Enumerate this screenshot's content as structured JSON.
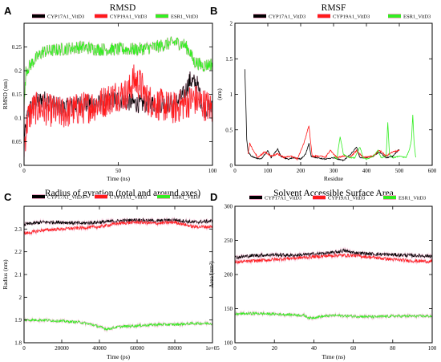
{
  "colors": {
    "CYP17A1": "#000000",
    "CYP19A1": "#ff1a1a",
    "ESR1": "#33ee22",
    "shadow": "#f2a8c8"
  },
  "chart_data": [
    {
      "panel": "A",
      "type": "line",
      "title": "RMSD",
      "xlabel": "Time (ns)",
      "ylabel": "RMSD (nm)",
      "xlim": [
        0,
        100
      ],
      "ylim": [
        0,
        0.3
      ],
      "xticks": [
        0,
        50,
        100
      ],
      "yticks": [
        0,
        0.05,
        0.1,
        0.15,
        0.2,
        0.25
      ],
      "yticklabels": [
        "0",
        "0.05",
        "0.1",
        "0.15",
        "0.2",
        "0.25"
      ],
      "legend_position": "top",
      "series": [
        {
          "name": "CYP17A1_VitD3",
          "color_key": "CYP17A1",
          "noise": 0.02,
          "values": [
            [
              0,
              0.05
            ],
            [
              2,
              0.11
            ],
            [
              5,
              0.13
            ],
            [
              10,
              0.14
            ],
            [
              15,
              0.13
            ],
            [
              20,
              0.12
            ],
            [
              30,
              0.13
            ],
            [
              40,
              0.13
            ],
            [
              50,
              0.14
            ],
            [
              60,
              0.13
            ],
            [
              70,
              0.13
            ],
            [
              80,
              0.13
            ],
            [
              85,
              0.15
            ],
            [
              88,
              0.18
            ],
            [
              92,
              0.17
            ],
            [
              95,
              0.12
            ],
            [
              100,
              0.12
            ]
          ]
        },
        {
          "name": "CYP19A1_VitD3",
          "color_key": "CYP19A1",
          "noise": 0.035,
          "values": [
            [
              0,
              0.04
            ],
            [
              2,
              0.1
            ],
            [
              5,
              0.12
            ],
            [
              10,
              0.12
            ],
            [
              20,
              0.11
            ],
            [
              30,
              0.12
            ],
            [
              40,
              0.13
            ],
            [
              45,
              0.14
            ],
            [
              50,
              0.15
            ],
            [
              55,
              0.15
            ],
            [
              58,
              0.18
            ],
            [
              62,
              0.17
            ],
            [
              65,
              0.14
            ],
            [
              70,
              0.13
            ],
            [
              80,
              0.12
            ],
            [
              90,
              0.14
            ],
            [
              100,
              0.12
            ]
          ]
        },
        {
          "name": "ESR1_VitD3",
          "color_key": "ESR1",
          "noise": 0.014,
          "values": [
            [
              0,
              0.12
            ],
            [
              1,
              0.2
            ],
            [
              3,
              0.21
            ],
            [
              5,
              0.22
            ],
            [
              10,
              0.24
            ],
            [
              20,
              0.245
            ],
            [
              30,
              0.25
            ],
            [
              40,
              0.245
            ],
            [
              50,
              0.245
            ],
            [
              60,
              0.245
            ],
            [
              70,
              0.25
            ],
            [
              80,
              0.26
            ],
            [
              85,
              0.255
            ],
            [
              88,
              0.24
            ],
            [
              90,
              0.22
            ],
            [
              95,
              0.21
            ],
            [
              100,
              0.215
            ]
          ]
        }
      ]
    },
    {
      "panel": "B",
      "type": "line",
      "title": "RMSF",
      "xlabel": "Residue",
      "ylabel": "(nm)",
      "xlim": [
        0,
        600
      ],
      "ylim": [
        0,
        2
      ],
      "xticks": [
        0,
        100,
        200,
        300,
        400,
        500,
        600
      ],
      "yticks": [
        0,
        0.5,
        1,
        1.5,
        2
      ],
      "yticklabels": [
        "0",
        "0.5",
        "1",
        "1.5",
        "2"
      ],
      "legend_position": "top",
      "series": [
        {
          "name": "CYP17A1_VitD3",
          "color_key": "CYP17A1",
          "noise": 0.015,
          "values": [
            [
              30,
              1.35
            ],
            [
              33,
              0.9
            ],
            [
              36,
              0.35
            ],
            [
              40,
              0.18
            ],
            [
              50,
              0.12
            ],
            [
              60,
              0.1
            ],
            [
              80,
              0.08
            ],
            [
              100,
              0.2
            ],
            [
              110,
              0.1
            ],
            [
              130,
              0.22
            ],
            [
              140,
              0.12
            ],
            [
              160,
              0.08
            ],
            [
              180,
              0.1
            ],
            [
              200,
              0.08
            ],
            [
              215,
              0.15
            ],
            [
              225,
              0.3
            ],
            [
              232,
              0.12
            ],
            [
              250,
              0.1
            ],
            [
              270,
              0.08
            ],
            [
              300,
              0.1
            ],
            [
              330,
              0.06
            ],
            [
              350,
              0.14
            ],
            [
              370,
              0.25
            ],
            [
              380,
              0.1
            ],
            [
              400,
              0.1
            ],
            [
              420,
              0.12
            ],
            [
              440,
              0.18
            ],
            [
              460,
              0.1
            ],
            [
              480,
              0.12
            ],
            [
              500,
              0.22
            ]
          ]
        },
        {
          "name": "CYP19A1_VitD3",
          "color_key": "CYP19A1",
          "noise": 0.02,
          "values": [
            [
              40,
              0.15
            ],
            [
              45,
              0.3
            ],
            [
              55,
              0.2
            ],
            [
              70,
              0.1
            ],
            [
              90,
              0.18
            ],
            [
              110,
              0.12
            ],
            [
              130,
              0.15
            ],
            [
              150,
              0.1
            ],
            [
              170,
              0.12
            ],
            [
              190,
              0.08
            ],
            [
              210,
              0.3
            ],
            [
              225,
              0.55
            ],
            [
              235,
              0.12
            ],
            [
              260,
              0.12
            ],
            [
              275,
              0.1
            ],
            [
              290,
              0.2
            ],
            [
              310,
              0.1
            ],
            [
              330,
              0.12
            ],
            [
              350,
              0.1
            ],
            [
              370,
              0.2
            ],
            [
              390,
              0.1
            ],
            [
              420,
              0.12
            ],
            [
              440,
              0.2
            ],
            [
              460,
              0.12
            ],
            [
              480,
              0.18
            ],
            [
              500,
              0.2
            ]
          ]
        },
        {
          "name": "ESR1_VitD3",
          "color_key": "ESR1",
          "noise": 0.015,
          "values": [
            [
              300,
              0.12
            ],
            [
              310,
              0.08
            ],
            [
              320,
              0.4
            ],
            [
              330,
              0.15
            ],
            [
              340,
              0.12
            ],
            [
              350,
              0.1
            ],
            [
              365,
              0.1
            ],
            [
              380,
              0.25
            ],
            [
              390,
              0.1
            ],
            [
              400,
              0.08
            ],
            [
              420,
              0.12
            ],
            [
              435,
              0.2
            ],
            [
              445,
              0.1
            ],
            [
              460,
              0.12
            ],
            [
              465,
              0.6
            ],
            [
              470,
              0.15
            ],
            [
              480,
              0.1
            ],
            [
              500,
              0.12
            ],
            [
              520,
              0.1
            ],
            [
              530,
              0.2
            ],
            [
              537,
              0.35
            ],
            [
              541,
              0.7
            ],
            [
              545,
              0.3
            ],
            [
              550,
              0.1
            ]
          ]
        }
      ]
    },
    {
      "panel": "C",
      "type": "line",
      "title": "Radius of gyration (total and around axes)",
      "xlabel": "Time (ps)",
      "ylabel": "Radius (nm)",
      "xlim": [
        0,
        100000
      ],
      "ylim": [
        1.8,
        2.4
      ],
      "xticks": [
        0,
        20000,
        40000,
        60000,
        80000,
        100000
      ],
      "xticklabels": [
        "0",
        "20000",
        "40000",
        "60000",
        "80000",
        "1e+05"
      ],
      "yticks": [
        1.8,
        1.9,
        2.0,
        2.1,
        2.2,
        2.3
      ],
      "yticklabels": [
        "1.8",
        "1.9",
        "2",
        "2.1",
        "2.2",
        "2.3"
      ],
      "legend_position": "top",
      "series": [
        {
          "name": "CYP17A1_VitD3",
          "color_key": "CYP17A1",
          "noise": 0.008,
          "values": [
            [
              0,
              2.32
            ],
            [
              10000,
              2.33
            ],
            [
              20000,
              2.33
            ],
            [
              30000,
              2.325
            ],
            [
              40000,
              2.33
            ],
            [
              50000,
              2.335
            ],
            [
              60000,
              2.34
            ],
            [
              70000,
              2.335
            ],
            [
              80000,
              2.34
            ],
            [
              90000,
              2.33
            ],
            [
              100000,
              2.335
            ]
          ]
        },
        {
          "name": "CYP19A1_VitD3",
          "color_key": "CYP19A1",
          "noise": 0.007,
          "values": [
            [
              0,
              2.28
            ],
            [
              10000,
              2.295
            ],
            [
              20000,
              2.3
            ],
            [
              30000,
              2.305
            ],
            [
              40000,
              2.31
            ],
            [
              50000,
              2.325
            ],
            [
              60000,
              2.33
            ],
            [
              70000,
              2.325
            ],
            [
              80000,
              2.33
            ],
            [
              90000,
              2.31
            ],
            [
              100000,
              2.31
            ]
          ]
        },
        {
          "name": "ESR1_VitD3",
          "color_key": "ESR1",
          "noise": 0.006,
          "values": [
            [
              0,
              1.9
            ],
            [
              10000,
              1.9
            ],
            [
              20000,
              1.895
            ],
            [
              30000,
              1.89
            ],
            [
              36000,
              1.88
            ],
            [
              40000,
              1.87
            ],
            [
              44000,
              1.86
            ],
            [
              50000,
              1.87
            ],
            [
              60000,
              1.875
            ],
            [
              70000,
              1.88
            ],
            [
              80000,
              1.88
            ],
            [
              90000,
              1.885
            ],
            [
              100000,
              1.885
            ]
          ]
        }
      ]
    },
    {
      "panel": "D",
      "type": "line",
      "title": "Solvent Accessible Surface Area",
      "xlabel": "Time (ns)",
      "ylabel": "Area (nm²)",
      "xlim": [
        0,
        100
      ],
      "ylim": [
        100,
        300
      ],
      "xticks": [
        0,
        20,
        40,
        60,
        80,
        100
      ],
      "yticks": [
        100,
        150,
        200,
        250,
        300
      ],
      "yticklabels": [
        "100",
        "150",
        "200",
        "250",
        "300"
      ],
      "legend_position": "top",
      "series": [
        {
          "name": "CYP17A1_VitD3",
          "color_key": "CYP17A1",
          "noise": 2.6,
          "values": [
            [
              0,
              225
            ],
            [
              10,
              228
            ],
            [
              20,
              229
            ],
            [
              30,
              228
            ],
            [
              40,
              230
            ],
            [
              50,
              232
            ],
            [
              55,
              235
            ],
            [
              60,
              232
            ],
            [
              70,
              230
            ],
            [
              80,
              229
            ],
            [
              90,
              228
            ],
            [
              100,
              227
            ]
          ]
        },
        {
          "name": "CYP19A1_VitD3",
          "color_key": "CYP19A1",
          "noise": 2.4,
          "values": [
            [
              0,
              218
            ],
            [
              10,
              220
            ],
            [
              20,
              222
            ],
            [
              30,
              224
            ],
            [
              40,
              226
            ],
            [
              50,
              228
            ],
            [
              60,
              228
            ],
            [
              70,
              225
            ],
            [
              80,
              222
            ],
            [
              90,
              220
            ],
            [
              100,
              219
            ]
          ]
        },
        {
          "name": "ESR1_VitD3",
          "color_key": "ESR1",
          "noise": 2.0,
          "values": [
            [
              0,
              142
            ],
            [
              10,
              143
            ],
            [
              20,
              142
            ],
            [
              30,
              141
            ],
            [
              35,
              140
            ],
            [
              38,
              136
            ],
            [
              42,
              138
            ],
            [
              50,
              140
            ],
            [
              60,
              139
            ],
            [
              70,
              138
            ],
            [
              80,
              139
            ],
            [
              90,
              139
            ],
            [
              100,
              139
            ]
          ]
        }
      ]
    }
  ]
}
